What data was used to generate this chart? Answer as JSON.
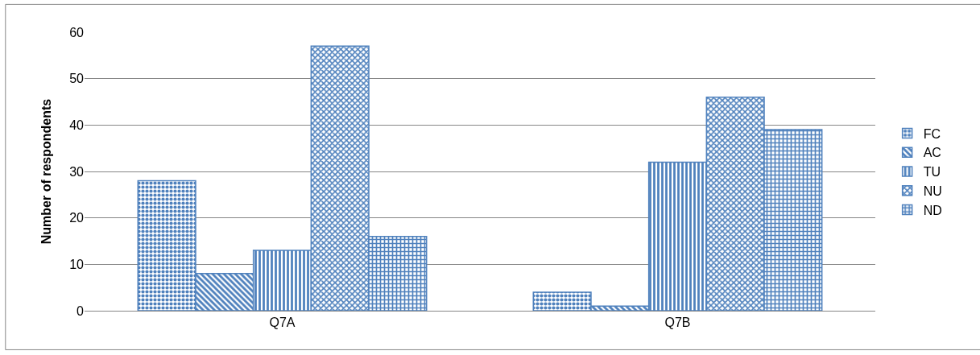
{
  "chart_data": {
    "type": "bar",
    "ylabel": "Number of respondents",
    "categories": [
      "Q7A",
      "Q7B"
    ],
    "series": [
      {
        "name": "FC",
        "color": "#4f81bd",
        "values": [
          28,
          4
        ]
      },
      {
        "name": "AC",
        "color": "#4f81bd",
        "values": [
          8,
          1
        ]
      },
      {
        "name": "TU",
        "color": "#4f81bd",
        "values": [
          13,
          32
        ]
      },
      {
        "name": "NU",
        "color": "#4f81bd",
        "values": [
          57,
          46
        ]
      },
      {
        "name": "ND",
        "color": "#4f81bd",
        "values": [
          16,
          39
        ]
      }
    ],
    "ylim": [
      0,
      60
    ],
    "yticks": [
      0,
      10,
      20,
      30,
      40,
      50,
      60
    ],
    "grid": "y",
    "legend": "right"
  }
}
